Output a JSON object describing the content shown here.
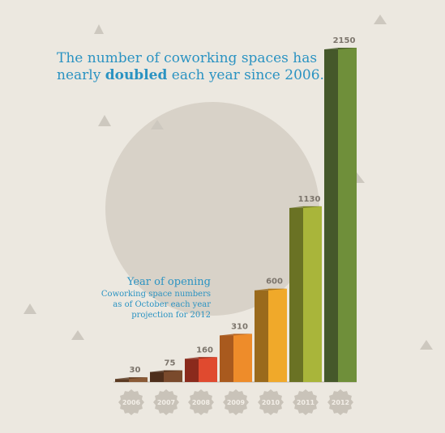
{
  "headline": {
    "pre": "The number of coworking spaces has nearly ",
    "bold": "doubled",
    "post": " each year since 2006."
  },
  "legend": {
    "title": "Year of opening",
    "line1": "Coworking space numbers",
    "line2": "as of October each year",
    "line3": "projection for 2012"
  },
  "colors": {
    "background": "#ece8e0",
    "title_text": "#2b93c2",
    "circle": "#d8d2c8",
    "badge": "#c9c3b9"
  },
  "chart_data": {
    "type": "bar",
    "categories": [
      "2006",
      "2007",
      "2008",
      "2009",
      "2010",
      "2011",
      "2012"
    ],
    "values": [
      30,
      75,
      160,
      310,
      600,
      1130,
      2150
    ],
    "title": "The number of coworking spaces has nearly doubled each year since 2006.",
    "xlabel": "",
    "ylabel": "",
    "ylim": [
      0,
      2150
    ],
    "grid": false,
    "bar_colors": [
      {
        "front": "#8a5a36",
        "side": "#5b3a22"
      },
      {
        "front": "#7a4a2c",
        "side": "#4e2e1b"
      },
      {
        "front": "#e04a2f",
        "side": "#8a2a1c"
      },
      {
        "front": "#ee8c2a",
        "side": "#a95a1e"
      },
      {
        "front": "#f0a92a",
        "side": "#9a6a1c"
      },
      {
        "front": "#a9b53a",
        "side": "#6a7224"
      },
      {
        "front": "#6f8f3a",
        "side": "#45582a"
      }
    ]
  }
}
